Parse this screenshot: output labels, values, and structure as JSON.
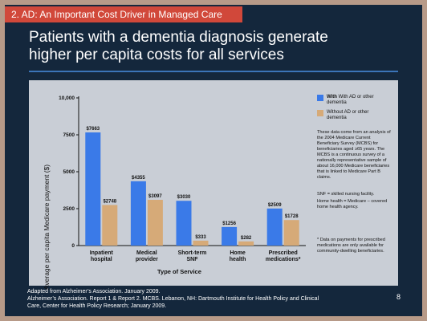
{
  "header": {
    "tag": "2.  AD: An Important Cost Driver in Managed Care",
    "title_line1": "Patients with a dementia diagnosis generate",
    "title_line2": "higher per capita costs for all services"
  },
  "colors": {
    "with_ad": "#3a7ae8",
    "without_ad": "#d6aa78",
    "tag_bg": "#d1483a",
    "background": "#14273c"
  },
  "chart_data": {
    "type": "bar",
    "categories": [
      [
        "Inpatient",
        "hospital"
      ],
      [
        "Medical",
        "provider"
      ],
      [
        "Short-term",
        "SNF"
      ],
      [
        "Home",
        "health"
      ],
      [
        "Prescribed",
        "medications*"
      ]
    ],
    "series": [
      {
        "name": "With AD or other dementia",
        "values": [
          7663,
          4355,
          3030,
          1256,
          2509
        ],
        "labels": [
          "$7663",
          "$4355",
          "$3030",
          "$1256",
          "$2509"
        ]
      },
      {
        "name": "Without AD or other dementia",
        "values": [
          2748,
          3097,
          333,
          282,
          1728
        ],
        "labels": [
          "$2748",
          "$3097",
          "$333",
          "$282",
          "$1728"
        ]
      }
    ],
    "yticks": [
      "0",
      "2500",
      "5000",
      "7500",
      "10,000"
    ],
    "ytick_values": [
      0,
      2500,
      5000,
      7500,
      10000
    ],
    "ylim": [
      0,
      10000
    ],
    "ylabel": "Average per capita Medicare payment ($)",
    "xlabel": "Type of Service",
    "legend_position": "top-right"
  },
  "legend": {
    "with_line1": "With AD or other",
    "with_line2": "dementia",
    "without_line1": "Without AD or other",
    "without_line2": "dementia"
  },
  "notes": {
    "survey": "These data come from an analysis of the 2004 Medicare Current Beneficiary Survey (MCBS) for beneficiaries aged ≥65 years. The MCBS is a continuous survey of a nationally representative sample of about 16,000 Medicare beneficiaries that is linked to Medicare Part B claims.",
    "snf": "SNF = skilled nursing facility.",
    "home_health": "Home health = Medicare – covered home health agency.",
    "prescribed": "* Data on payments for prescribed medications are only available for community-dwelling beneficiaries."
  },
  "footer": {
    "line1": "Adapted from Alzheimer’s Association. January 2009.",
    "line2": "Alzheimer’s Association.  Report 1 & Report 2. MCBS. Lebanon, NH: Dartmouth Institute for Health Policy and Clinical",
    "line3": "Care, Center for Health Policy Research; January 2009."
  },
  "page_number": "8"
}
